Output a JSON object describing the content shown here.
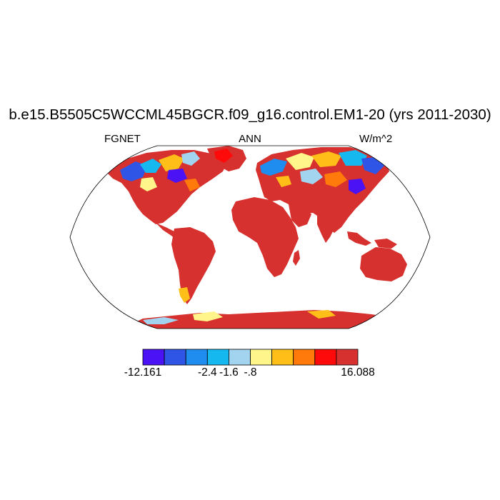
{
  "title": "b.e15.B5505C5WCCML45BGCR.f09_g16.control.EM1-20 (yrs 2011-2030)",
  "subtitle_left": "FGNET",
  "subtitle_center": "ANN",
  "subtitle_right": "W/m^2",
  "colorbar": {
    "colors": [
      "#4b12f5",
      "#2f55e6",
      "#1f8cf0",
      "#16b9ef",
      "#a3d4ef",
      "#fff58a",
      "#ffbf18",
      "#ff7a0a",
      "#ff0a0a",
      "#d6312e"
    ],
    "labels": [
      {
        "boundary": 0,
        "text": "-12.161"
      },
      {
        "boundary": 3,
        "text": "-2.4"
      },
      {
        "boundary": 4,
        "text": "-1.6"
      },
      {
        "boundary": 5,
        "text": "-.8"
      },
      {
        "boundary": 10,
        "text": "16.088"
      }
    ]
  },
  "map": {
    "projection": "Robinson",
    "variable": "FGNET",
    "season": "ANN",
    "units": "W/m^2",
    "land_fill": "#d6312e",
    "ocean_fill": "#ffffff"
  }
}
